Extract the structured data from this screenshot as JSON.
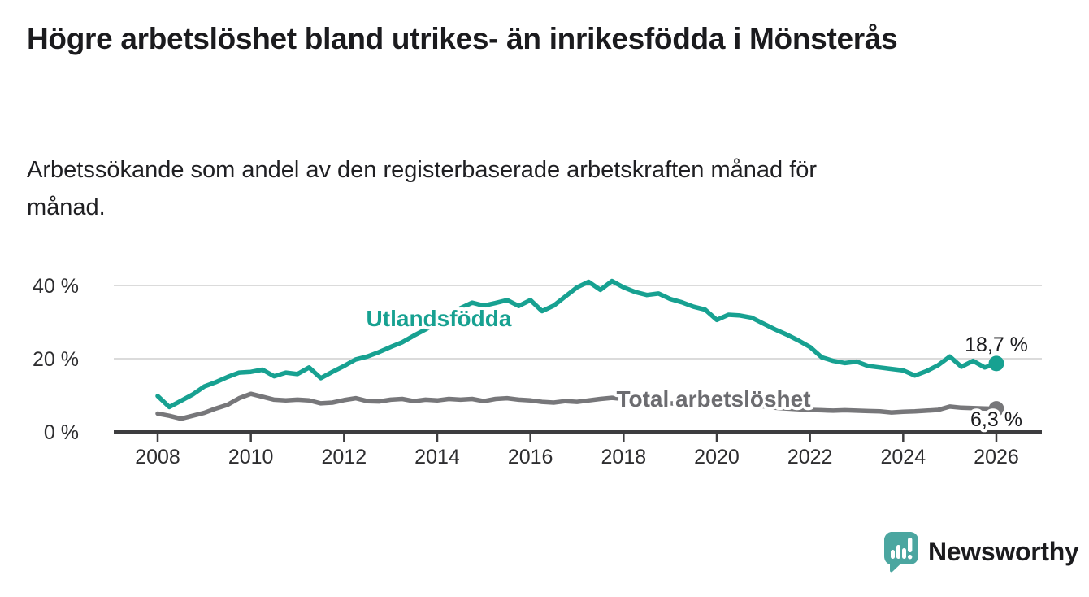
{
  "title": "Högre arbetslöshet bland utrikes- än inrikesfödda i Mönsterås",
  "subtitle": "Arbetssökande som andel av den registerbaserade arbetskraften månad för månad.",
  "branding": {
    "name": "Newsworthy",
    "logo_icon": "newsworthy-speech-bubble-bar-chart-icon",
    "color": "#4BA6A0"
  },
  "colors": {
    "foreign_born_line": "#17A191",
    "total_line": "#77777A",
    "total_label": "#6C6C70",
    "gridline": "#DBDBDB",
    "axis": "#3D3D3F",
    "tick_text": "#2E2E30",
    "value_text": "#1B1B1E"
  },
  "chart_data": {
    "type": "line",
    "title": "Högre arbetslöshet bland utrikes- än inrikesfödda i Mönsterås",
    "subtitle": "Arbetssökande som andel av den registerbaserade arbetskraften månad för månad.",
    "xlabel": "",
    "ylabel": "",
    "xlim": [
      2007.9,
      2027
    ],
    "ylim": [
      0,
      45
    ],
    "grid": "horizontal-only",
    "legend_position": "inline-labels-on-chart",
    "x_ticks": [
      2008,
      2010,
      2012,
      2014,
      2016,
      2018,
      2020,
      2022,
      2024,
      2026
    ],
    "y_ticks": [
      {
        "value": 0,
        "label": "0 %"
      },
      {
        "value": 20,
        "label": "20 %"
      },
      {
        "value": 40,
        "label": "40 %"
      }
    ],
    "x_unit": "year (monthly data)",
    "y_unit": "percent",
    "x_start": 2008,
    "x_step": 0.25,
    "series": [
      {
        "name": "Utlandsfödda",
        "color": "#17A191",
        "end_label": "18,7 %",
        "end_value": 18.7,
        "values": [
          9.8,
          6.8,
          8.5,
          10.2,
          12.4,
          13.6,
          15.0,
          16.2,
          16.4,
          17.0,
          15.2,
          16.2,
          15.8,
          17.6,
          14.7,
          16.4,
          18.0,
          19.8,
          20.6,
          21.8,
          23.2,
          24.5,
          26.3,
          28.0,
          30.0,
          32.0,
          33.8,
          35.3,
          34.5,
          35.2,
          36.0,
          34.4,
          36.0,
          33.0,
          34.5,
          37.0,
          39.5,
          41.0,
          38.8,
          41.2,
          39.5,
          38.2,
          37.4,
          37.8,
          36.3,
          35.4,
          34.2,
          33.4,
          30.6,
          32.0,
          31.8,
          31.2,
          29.6,
          28.0,
          26.6,
          25.0,
          23.2,
          20.4,
          19.4,
          18.8,
          19.2,
          18.0,
          17.6,
          17.2,
          16.8,
          15.4,
          16.6,
          18.2,
          20.6,
          17.8,
          19.4,
          17.6,
          18.7
        ]
      },
      {
        "name": "Total arbetslöshet",
        "color": "#77777A",
        "end_label": "6,3 %",
        "end_value": 6.3,
        "values": [
          5.0,
          4.4,
          3.6,
          4.4,
          5.2,
          6.4,
          7.4,
          9.2,
          10.4,
          9.6,
          8.8,
          8.6,
          8.8,
          8.6,
          7.8,
          8.0,
          8.7,
          9.2,
          8.4,
          8.3,
          8.8,
          9.0,
          8.4,
          8.8,
          8.6,
          9.0,
          8.8,
          9.0,
          8.4,
          9.0,
          9.2,
          8.8,
          8.6,
          8.2,
          8.0,
          8.4,
          8.2,
          8.6,
          9.0,
          9.3,
          9.0,
          8.6,
          8.2,
          8.0,
          7.8,
          7.6,
          7.4,
          7.4,
          7.6,
          8.0,
          7.8,
          7.4,
          7.0,
          6.6,
          6.4,
          6.2,
          6.0,
          5.9,
          5.8,
          5.9,
          5.8,
          5.7,
          5.6,
          5.3,
          5.5,
          5.6,
          5.8,
          6.0,
          6.9,
          6.6,
          6.5,
          6.4,
          6.3
        ]
      }
    ]
  }
}
